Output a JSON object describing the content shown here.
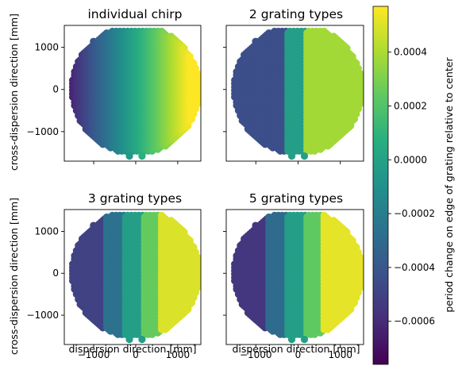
{
  "chart_data": {
    "type": "scatter",
    "panels": [
      {
        "title": "individual chirp",
        "mode": "continuous",
        "ylabel": "cross-dispersion direction [mm]",
        "xlabel": ""
      },
      {
        "title": "2 grating types",
        "mode": "binned",
        "boundaries": [
          -270,
          180,
          600
        ],
        "levels": [
          -0.00044,
          -2e-05,
          0.00038
        ],
        "ylabel": "",
        "xlabel": ""
      },
      {
        "title": "3 grating types",
        "mode": "binned",
        "boundaries": [
          -720,
          -270,
          180,
          600,
          1050
        ],
        "levels": [
          -0.0005,
          -0.00026,
          -2e-05,
          0.00025,
          0.0005
        ],
        "ylabel": "cross-dispersion direction [mm]",
        "xlabel": "dispersion direction [mm]"
      },
      {
        "title": "5 grating types",
        "mode": "binned",
        "boundaries": [
          -720,
          -270,
          180,
          600,
          1050
        ],
        "levels": [
          -0.00055,
          -0.0003,
          -2e-05,
          0.00024,
          0.00052
        ],
        "ylabel": "",
        "xlabel": "dispersion direction [mm]"
      }
    ],
    "shape": {
      "radius_mm": 1520,
      "core_halfwidth_mm": 420,
      "core_halfheight_mm": 1390
    },
    "xlim": [
      -1700,
      1550
    ],
    "ylim": [
      -1700,
      1520
    ],
    "xticks": [
      -1000,
      0,
      1000
    ],
    "xtick_labels": [
      "−1000",
      "0",
      "1000"
    ],
    "yticks": [
      -1000,
      0,
      1000
    ],
    "ytick_labels": [
      "−1000",
      "0",
      "1000"
    ],
    "colorbar": {
      "label": "period change on edge of grating relative to center",
      "colormap": "viridis",
      "vmin": -0.00076,
      "vmax": 0.00057,
      "ticks": [
        -0.0006,
        -0.0004,
        -0.0002,
        0.0,
        0.0002,
        0.0004
      ],
      "tick_labels": [
        "−0.0006",
        "−0.0004",
        "−0.0002",
        "0.0000",
        "0.0002",
        "0.0004"
      ]
    }
  }
}
